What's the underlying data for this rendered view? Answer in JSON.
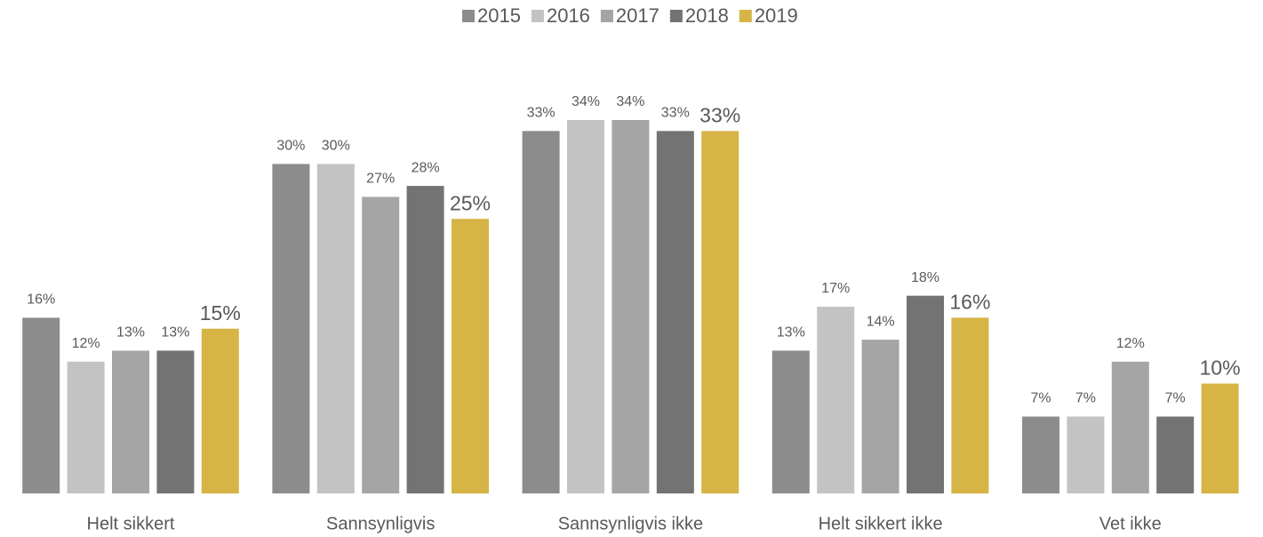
{
  "chart_data": {
    "type": "bar",
    "categories": [
      "Helt sikkert",
      "Sannsynligvis",
      "Sannsynligvis ikke",
      "Helt sikkert ikke",
      "Vet ikke"
    ],
    "series": [
      {
        "name": "2015",
        "color": "#8c8c8c",
        "values": [
          16,
          30,
          33,
          13,
          7
        ],
        "value_labels": [
          "16%",
          "30%",
          "33%",
          "13%",
          "7%"
        ]
      },
      {
        "name": "2016",
        "color": "#c3c3c3",
        "values": [
          12,
          30,
          34,
          17,
          7
        ],
        "value_labels": [
          "12%",
          "30%",
          "34%",
          "17%",
          "7%"
        ]
      },
      {
        "name": "2017",
        "color": "#a5a5a5",
        "values": [
          13,
          27,
          34,
          14,
          12
        ],
        "value_labels": [
          "13%",
          "27%",
          "34%",
          "14%",
          "12%"
        ]
      },
      {
        "name": "2018",
        "color": "#737373",
        "values": [
          13,
          28,
          33,
          18,
          7
        ],
        "value_labels": [
          "13%",
          "28%",
          "33%",
          "18%",
          "7%"
        ]
      },
      {
        "name": "2019",
        "color": "#d6b445",
        "values": [
          15,
          25,
          33,
          16,
          10
        ],
        "value_labels": [
          "15%",
          "25%",
          "33%",
          "16%",
          "10%"
        ]
      }
    ],
    "legend": "top"
  }
}
